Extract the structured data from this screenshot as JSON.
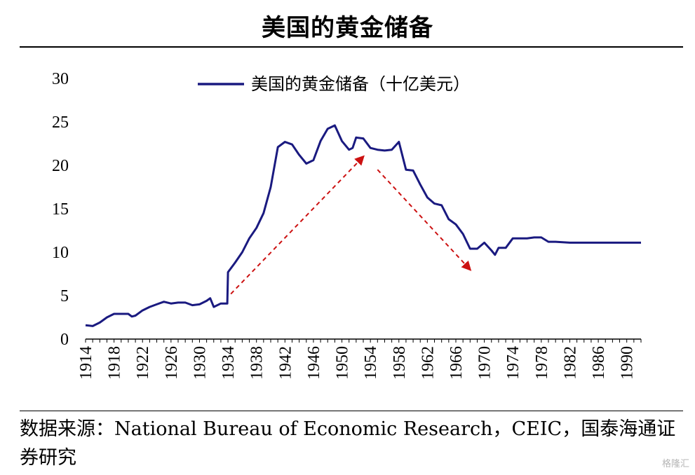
{
  "title": "美国的黄金储备",
  "source": "数据来源：National Bureau of Economic Research，CEIC，国泰海通证券研究",
  "watermark": "格隆汇",
  "colors": {
    "series": "#1a1a80",
    "arrow": "#cc1111"
  },
  "chart_data": {
    "type": "line",
    "title": "美国的黄金储备",
    "xlabel": "",
    "ylabel": "",
    "xlim": [
      1914,
      1992
    ],
    "ylim": [
      0,
      30
    ],
    "yticks": [
      0,
      5,
      10,
      15,
      20,
      25,
      30
    ],
    "xticks": [
      "1914",
      "1918",
      "1922",
      "1926",
      "1930",
      "1934",
      "1938",
      "1942",
      "1946",
      "1950",
      "1954",
      "1958",
      "1962",
      "1966",
      "1970",
      "1974",
      "1978",
      "1982",
      "1986",
      "1990"
    ],
    "legend": {
      "position": "top-center"
    },
    "grid": false,
    "series": [
      {
        "name": "美国的黄金储备（十亿美元）",
        "x": [
          1914,
          1915,
          1916,
          1917,
          1918,
          1919,
          1920,
          1920.5,
          1921,
          1922,
          1923,
          1924,
          1925,
          1926,
          1927,
          1928,
          1929,
          1930,
          1931,
          1931.5,
          1932,
          1933,
          1933.9,
          1934,
          1935,
          1936,
          1937,
          1938,
          1939,
          1940,
          1941,
          1942,
          1943,
          1944,
          1945,
          1946,
          1947,
          1948,
          1949,
          1950,
          1951,
          1951.5,
          1952,
          1953,
          1954,
          1955,
          1956,
          1957,
          1958,
          1959,
          1960,
          1961,
          1962,
          1963,
          1964,
          1965,
          1966,
          1967,
          1968,
          1969,
          1970,
          1971,
          1971.5,
          1972,
          1973,
          1974,
          1975,
          1976,
          1977,
          1978,
          1979,
          1980,
          1982,
          1984,
          1986,
          1988,
          1990,
          1991,
          1992
        ],
        "values": [
          1.6,
          1.5,
          1.9,
          2.5,
          2.9,
          2.9,
          2.9,
          2.6,
          2.7,
          3.3,
          3.7,
          4.0,
          4.3,
          4.1,
          4.2,
          4.2,
          3.9,
          4.0,
          4.4,
          4.7,
          3.7,
          4.1,
          4.1,
          7.7,
          8.8,
          10.0,
          11.6,
          12.8,
          14.5,
          17.5,
          22.1,
          22.7,
          22.4,
          21.2,
          20.2,
          20.6,
          22.8,
          24.2,
          24.6,
          22.8,
          21.8,
          22.0,
          23.2,
          23.1,
          22.0,
          21.8,
          21.7,
          21.8,
          22.7,
          19.5,
          19.4,
          17.8,
          16.3,
          15.6,
          15.4,
          13.8,
          13.2,
          12.1,
          10.4,
          10.4,
          11.1,
          10.2,
          9.7,
          10.5,
          10.5,
          11.6,
          11.6,
          11.6,
          11.7,
          11.7,
          11.2,
          11.2,
          11.1,
          11.1,
          11.1,
          11.1,
          11.1,
          11.1,
          11.1
        ]
      }
    ],
    "annotations": [
      {
        "type": "arrow",
        "from": [
          1934.4,
          5.2
        ],
        "to": [
          1953,
          21.0
        ]
      },
      {
        "type": "arrow",
        "from": [
          1955,
          19.5
        ],
        "to": [
          1968,
          8.0
        ]
      }
    ]
  }
}
